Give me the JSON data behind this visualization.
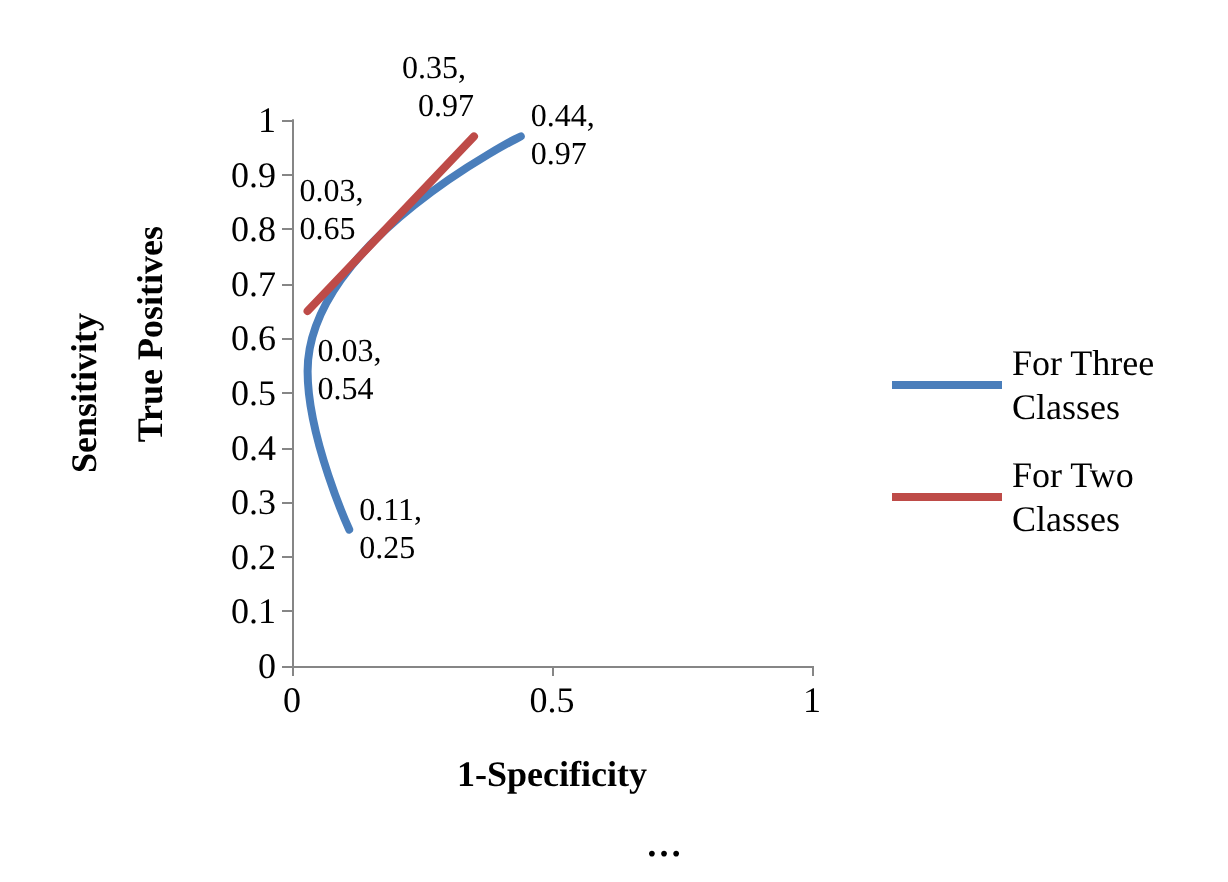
{
  "chart_data": {
    "type": "line",
    "xlabel": "1-Specificity",
    "ylabel": "Sensitivity",
    "annotations": [
      "True Positives",
      "…"
    ],
    "xlim": [
      0,
      1
    ],
    "xticks": [
      0,
      0.5,
      1
    ],
    "ylim": [
      0,
      1
    ],
    "yticks": [
      0,
      0.1,
      0.2,
      0.3,
      0.4,
      0.5,
      0.6,
      0.7,
      0.8,
      0.9,
      1
    ],
    "grid": false,
    "legend": "right",
    "marker": "none",
    "line_style": "solid",
    "series": [
      {
        "name": "For Three Classes",
        "color": "#4a7ebb",
        "x": [
          0.11,
          0.03,
          0.44
        ],
        "values": [
          0.25,
          0.54,
          0.97
        ],
        "value_labels": [
          "0.11, 0.25",
          "0.03, 0.54",
          "0.44, 0.97"
        ]
      },
      {
        "name": "For Two Classes",
        "color": "#be4b48",
        "x": [
          0.03,
          0.35
        ],
        "values": [
          0.65,
          0.97
        ],
        "value_labels": [
          "0.03, 0.65",
          "0.35, 0.97"
        ]
      }
    ]
  }
}
